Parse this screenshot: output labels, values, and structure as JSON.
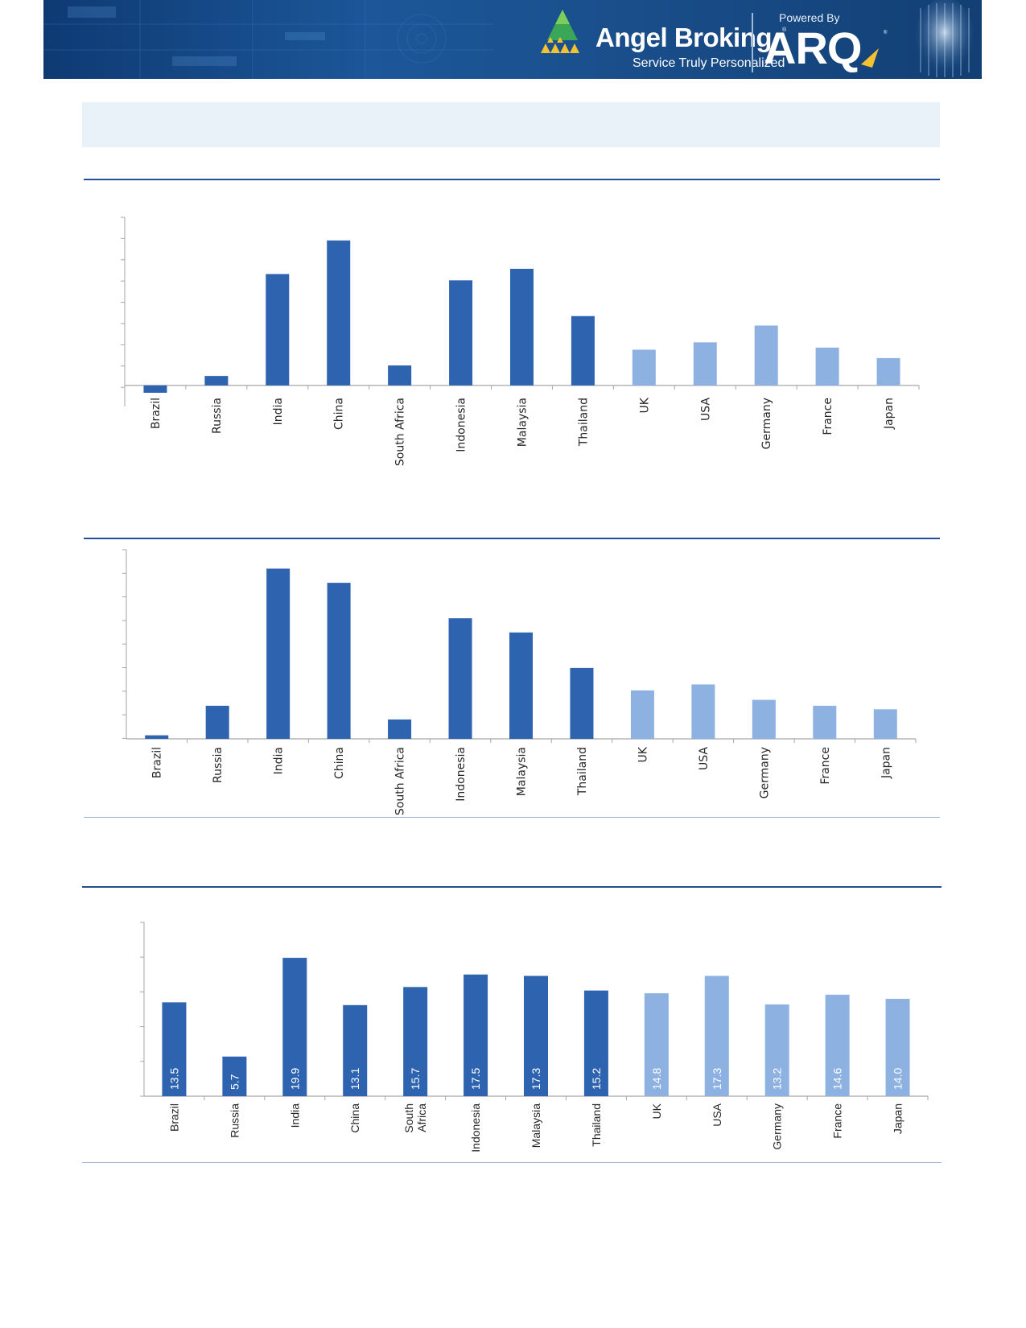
{
  "header": {
    "brand": "Angel Broking",
    "tagline": "Service Truly Personalized",
    "powered_by": "Powered By",
    "partner": "ARQ",
    "icons": [
      "angel-broking-logo-icon",
      "arq-logo-icon",
      "face-scan-icon"
    ]
  },
  "colors": {
    "emerging": "#2e63b0",
    "developed": "#8db2e2",
    "rule": "#244f96",
    "title_bar": "#eaf2f9"
  },
  "chart_data": [
    {
      "type": "bar",
      "categories": [
        "Brazil",
        "Russia",
        "India",
        "China",
        "South Africa",
        "Indonesia",
        "Malaysia",
        "Thailand",
        "UK",
        "USA",
        "Germany",
        "France",
        "Japan"
      ],
      "values": [
        -0.35,
        0.45,
        5.3,
        6.9,
        0.95,
        5.0,
        5.55,
        3.3,
        1.7,
        2.05,
        2.85,
        1.8,
        1.3
      ],
      "ylim": [
        -1,
        8
      ],
      "grid": false,
      "xlabel": "",
      "ylabel": ""
    },
    {
      "type": "bar",
      "categories": [
        "Brazil",
        "Russia",
        "India",
        "China",
        "South Africa",
        "Indonesia",
        "Malaysia",
        "Thailand",
        "UK",
        "USA",
        "Germany",
        "France",
        "Japan"
      ],
      "values": [
        0.15,
        1.4,
        7.2,
        6.6,
        0.82,
        5.1,
        4.5,
        3.0,
        2.05,
        2.3,
        1.65,
        1.4,
        1.25
      ],
      "ylim": [
        0,
        8
      ],
      "grid": false,
      "xlabel": "",
      "ylabel": ""
    },
    {
      "type": "bar",
      "categories": [
        "Brazil",
        "Russia",
        "India",
        "China",
        "South\nAfrica",
        "Indonesia",
        "Malaysia",
        "Thailand",
        "UK",
        "USA",
        "Germany",
        "France",
        "Japan"
      ],
      "values": [
        13.5,
        5.7,
        19.9,
        13.1,
        15.7,
        17.5,
        17.3,
        15.2,
        14.8,
        17.3,
        13.2,
        14.6,
        14.0
      ],
      "data_labels": [
        "13.5",
        "5.7",
        "19.9",
        "13.1",
        "15.7",
        "17.5",
        "17.3",
        "15.2",
        "14.8",
        "17.3",
        "13.2",
        "14.6",
        "14.0"
      ],
      "ylim": [
        0,
        25
      ],
      "grid": false,
      "xlabel": "",
      "ylabel": ""
    }
  ]
}
